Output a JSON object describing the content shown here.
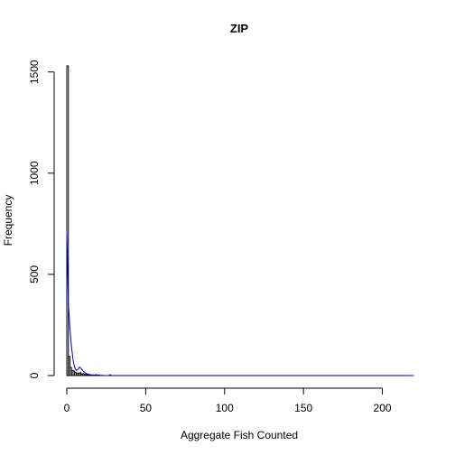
{
  "chart_data": {
    "type": "bar",
    "title": "ZIP",
    "xlabel": "Aggregate Fish Counted",
    "ylabel": "Frequency",
    "xlim": [
      0,
      220
    ],
    "ylim": [
      0,
      1530
    ],
    "x_ticks": [
      0,
      50,
      100,
      150,
      200
    ],
    "y_ticks": [
      0,
      500,
      1000,
      1500
    ],
    "x_tick_labels": [
      "0",
      "50",
      "100",
      "150",
      "200"
    ],
    "y_tick_labels": [
      "0",
      "500",
      "1000",
      "1500"
    ],
    "grid": false,
    "legend": "none",
    "bar_color": "#000000",
    "line_color": "#0000cc",
    "histogram": {
      "bin_width": 1,
      "bins": [
        {
          "x": 0,
          "count": 1530
        },
        {
          "x": 1,
          "count": 95
        },
        {
          "x": 2,
          "count": 40
        },
        {
          "x": 3,
          "count": 25
        },
        {
          "x": 4,
          "count": 22
        },
        {
          "x": 5,
          "count": 15
        },
        {
          "x": 6,
          "count": 12
        },
        {
          "x": 7,
          "count": 10
        },
        {
          "x": 8,
          "count": 14
        },
        {
          "x": 9,
          "count": 8
        },
        {
          "x": 10,
          "count": 9
        },
        {
          "x": 11,
          "count": 6
        },
        {
          "x": 12,
          "count": 5
        },
        {
          "x": 13,
          "count": 4
        },
        {
          "x": 14,
          "count": 5
        },
        {
          "x": 15,
          "count": 3
        },
        {
          "x": 16,
          "count": 3
        },
        {
          "x": 17,
          "count": 2
        },
        {
          "x": 18,
          "count": 4
        },
        {
          "x": 19,
          "count": 2
        },
        {
          "x": 20,
          "count": 3
        },
        {
          "x": 22,
          "count": 1
        },
        {
          "x": 27,
          "count": 3
        }
      ]
    },
    "fitted_curve": {
      "x": [
        0,
        1,
        2,
        3,
        4,
        5,
        6,
        7,
        8,
        9,
        10,
        11,
        12,
        13,
        14,
        15,
        16,
        17,
        18,
        19,
        20,
        22,
        25,
        30,
        40,
        60,
        100,
        150,
        200,
        220
      ],
      "y": [
        720,
        360,
        230,
        140,
        75,
        40,
        25,
        30,
        42,
        36,
        26,
        18,
        12,
        8,
        5,
        3,
        2,
        1,
        1,
        0.5,
        0.3,
        0.2,
        0.1,
        0,
        0,
        0,
        0,
        0,
        0,
        0
      ]
    }
  }
}
